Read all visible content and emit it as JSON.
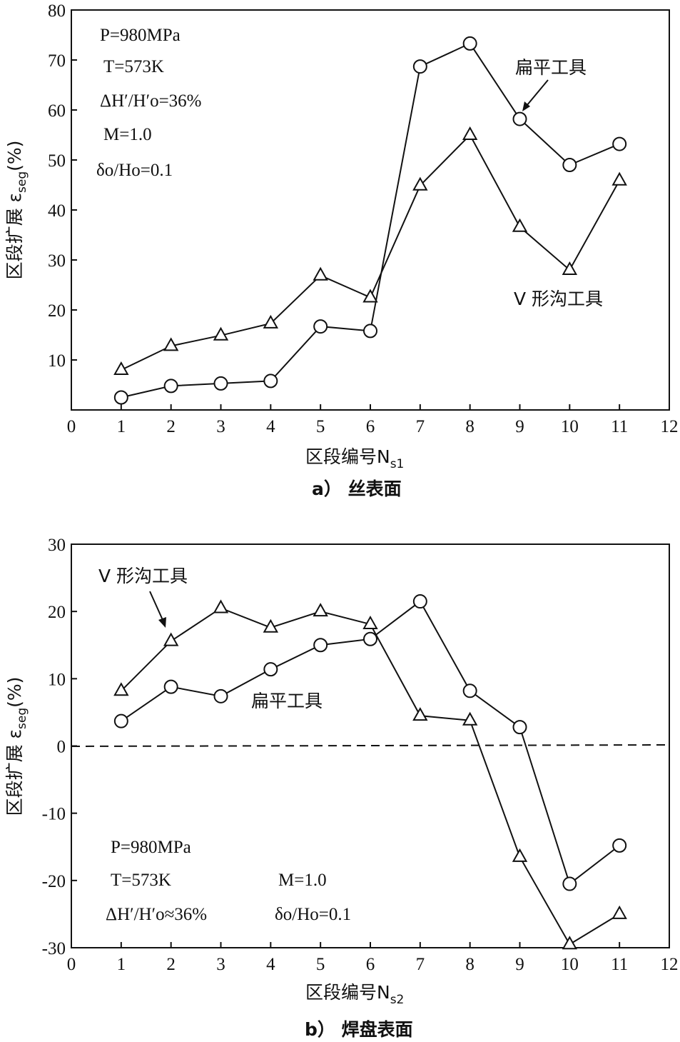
{
  "chart_data": [
    {
      "type": "line",
      "x": [
        1,
        2,
        3,
        4,
        5,
        6,
        7,
        8,
        9,
        10,
        11
      ],
      "xlim": [
        0,
        12
      ],
      "ylim": [
        0,
        80
      ],
      "xticks": [
        "0",
        "1",
        "2",
        "3",
        "4",
        "5",
        "6",
        "7",
        "8",
        "9",
        "10",
        "11",
        "12"
      ],
      "yticks": [
        "10",
        "20",
        "30",
        "40",
        "50",
        "60",
        "70",
        "80"
      ],
      "xlabel": "区段编号N",
      "xlabel_sub": "s1",
      "ylabel": "区段扩展 ε",
      "ylabel_sub": "seg",
      "ylabel_unit": "(%)",
      "caption": "a） 丝表面",
      "annotations": [
        "P=980MPa",
        "T=573K",
        "ΔH′/H′o=36%",
        "M=1.0",
        "δo/Ho=0.1"
      ],
      "series": [
        {
          "name": "扁平工具",
          "marker": "circle",
          "values": [
            2.5,
            4.8,
            5.3,
            5.8,
            16.7,
            15.8,
            68.7,
            73.3,
            58.2,
            49.0,
            53.2
          ]
        },
        {
          "name": "V 形沟工具",
          "marker": "triangle",
          "values": [
            8.0,
            12.8,
            14.9,
            17.3,
            26.9,
            22.5,
            44.9,
            55.0,
            36.6,
            28.0,
            45.9
          ]
        }
      ]
    },
    {
      "type": "line",
      "x": [
        1,
        2,
        3,
        4,
        5,
        6,
        7,
        8,
        9,
        10,
        11
      ],
      "xlim": [
        0,
        12
      ],
      "ylim": [
        -30,
        30
      ],
      "xticks": [
        "0",
        "1",
        "2",
        "3",
        "4",
        "5",
        "6",
        "7",
        "8",
        "9",
        "10",
        "11",
        "12"
      ],
      "yticks": [
        "-30",
        "-20",
        "-10",
        "0",
        "10",
        "20",
        "30"
      ],
      "xlabel": "区段编号N",
      "xlabel_sub": "s2",
      "ylabel": "区段扩展 ε",
      "ylabel_sub": "seg",
      "ylabel_unit": "(%)",
      "caption": "b） 焊盘表面",
      "annotations": [
        "P=980MPa",
        "T=573K",
        "ΔH′/H′o≈36%",
        "M=1.0",
        "δo/Ho=0.1"
      ],
      "series": [
        {
          "name": "扁平工具",
          "marker": "circle",
          "values": [
            3.7,
            8.8,
            7.4,
            11.4,
            15.0,
            15.9,
            21.5,
            8.2,
            2.8,
            -20.5,
            -14.8
          ]
        },
        {
          "name": "V 形沟工具",
          "marker": "triangle",
          "values": [
            8.2,
            15.6,
            20.5,
            17.6,
            20.0,
            18.1,
            4.5,
            3.8,
            -16.5,
            -29.5,
            -25.0
          ]
        }
      ]
    }
  ]
}
